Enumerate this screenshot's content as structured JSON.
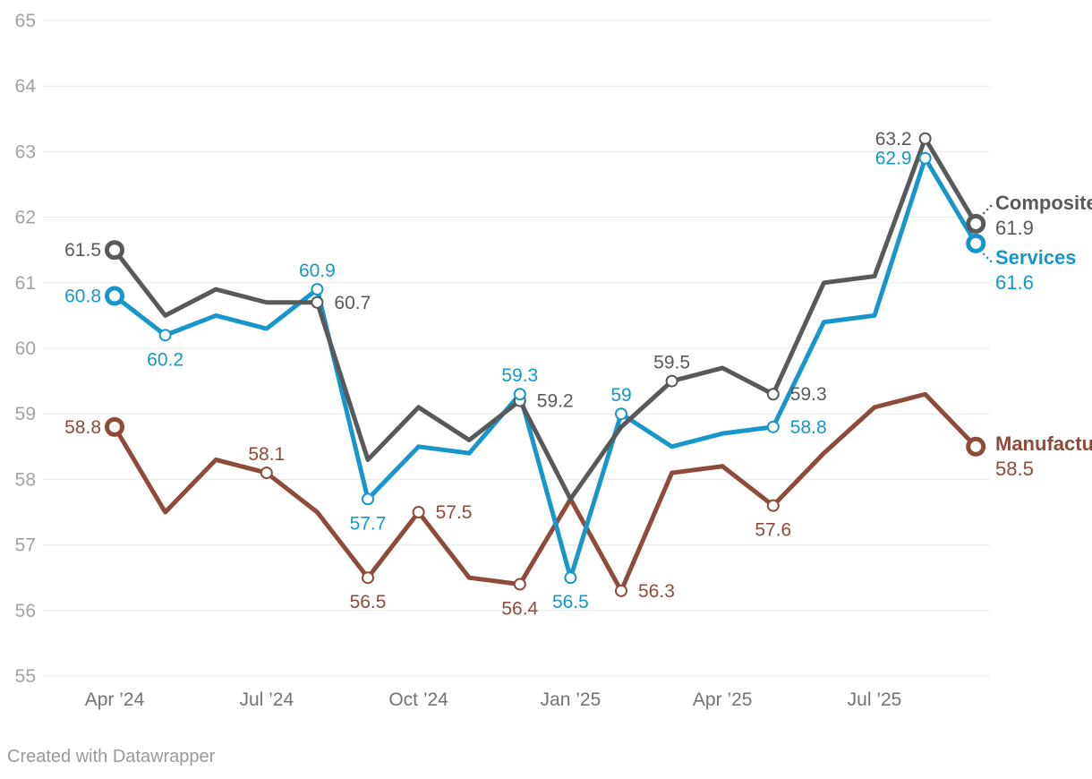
{
  "footer": {
    "credit": "Created with Datawrapper"
  },
  "chart_data": {
    "type": "line",
    "title": "",
    "grid": true,
    "legend_position": "right-of-line-ends",
    "categories": [
      "Apr 2024",
      "May 2024",
      "Jun 2024",
      "Jul 2024",
      "Aug 2024",
      "Sep 2024",
      "Oct 2024",
      "Nov 2024",
      "Dec 2024",
      "Jan 2025",
      "Feb 2025",
      "Mar 2025",
      "Apr 2025",
      "May 2025",
      "Jun 2025",
      "Jul 2025",
      "Aug 2025",
      "Sep 2025"
    ],
    "x_axis_ticks": [
      {
        "index": 0,
        "label": "Apr ’24"
      },
      {
        "index": 3,
        "label": "Jul ’24"
      },
      {
        "index": 6,
        "label": "Oct ’24"
      },
      {
        "index": 9,
        "label": "Jan ’25"
      },
      {
        "index": 12,
        "label": "Apr ’25"
      },
      {
        "index": 15,
        "label": "Jul ’25"
      }
    ],
    "y_axis": {
      "min": 55,
      "max": 65,
      "tick_step": 1,
      "tick_labels": [
        "55",
        "56",
        "57",
        "58",
        "59",
        "60",
        "61",
        "62",
        "63",
        "64",
        "65"
      ]
    },
    "series": [
      {
        "name": "Composite",
        "color": "#58595b",
        "values": [
          61.5,
          60.5,
          60.9,
          60.7,
          60.7,
          58.3,
          59.1,
          58.6,
          59.2,
          57.7,
          58.8,
          59.5,
          59.7,
          59.3,
          61.0,
          61.1,
          63.2,
          61.9
        ],
        "end_value_label": "61.9",
        "end_label_dy": -16,
        "end_connector": "up",
        "labeled_points": [
          {
            "index": 0,
            "text": "61.5",
            "placement": "left"
          },
          {
            "index": 4,
            "text": "60.7",
            "placement": "right"
          },
          {
            "index": 8,
            "text": "59.2",
            "placement": "right"
          },
          {
            "index": 11,
            "text": "59.5",
            "placement": "above"
          },
          {
            "index": 13,
            "text": "59.3",
            "placement": "right"
          },
          {
            "index": 16,
            "text": "63.2",
            "placement": "left"
          }
        ]
      },
      {
        "name": "Services",
        "color": "#1796cb",
        "values": [
          60.8,
          60.2,
          60.5,
          60.3,
          60.9,
          57.7,
          58.5,
          58.4,
          59.3,
          56.5,
          59.0,
          58.5,
          58.7,
          58.8,
          60.4,
          60.5,
          62.9,
          61.6
        ],
        "end_value_label": "61.6",
        "end_label_dy": 23,
        "end_connector": "down",
        "labeled_points": [
          {
            "index": 0,
            "text": "60.8",
            "placement": "left"
          },
          {
            "index": 1,
            "text": "60.2",
            "placement": "below"
          },
          {
            "index": 4,
            "text": "60.9",
            "placement": "above"
          },
          {
            "index": 5,
            "text": "57.7",
            "placement": "below"
          },
          {
            "index": 8,
            "text": "59.3",
            "placement": "above"
          },
          {
            "index": 9,
            "text": "56.5",
            "placement": "below"
          },
          {
            "index": 10,
            "text": "59",
            "placement": "above"
          },
          {
            "index": 13,
            "text": "58.8",
            "placement": "right"
          },
          {
            "index": 16,
            "text": "62.9",
            "placement": "left"
          }
        ]
      },
      {
        "name": "Manufacturing",
        "color": "#8d4b3c",
        "values": [
          58.8,
          57.5,
          58.3,
          58.1,
          57.5,
          56.5,
          57.5,
          56.5,
          56.4,
          57.7,
          56.3,
          58.1,
          58.2,
          57.6,
          58.4,
          59.1,
          59.3,
          58.5
        ],
        "end_value_label": "58.5",
        "end_label_dy": 4,
        "end_connector": "none",
        "labeled_points": [
          {
            "index": 0,
            "text": "58.8",
            "placement": "left"
          },
          {
            "index": 3,
            "text": "58.1",
            "placement": "above"
          },
          {
            "index": 5,
            "text": "56.5",
            "placement": "below"
          },
          {
            "index": 6,
            "text": "57.5",
            "placement": "right"
          },
          {
            "index": 8,
            "text": "56.4",
            "placement": "below"
          },
          {
            "index": 10,
            "text": "56.3",
            "placement": "right"
          },
          {
            "index": 13,
            "text": "57.6",
            "placement": "below"
          }
        ]
      }
    ]
  }
}
